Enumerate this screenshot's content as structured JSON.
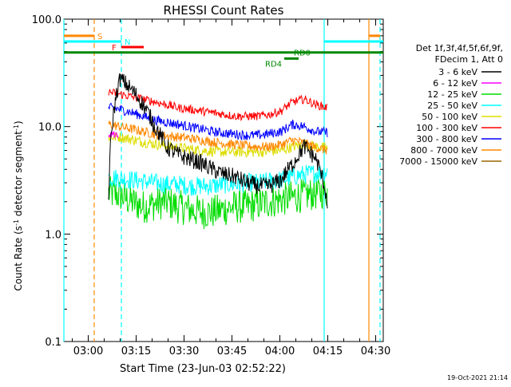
{
  "chart_data": {
    "type": "line",
    "title": "RHESSI Count Rates",
    "xlabel": "Start Time (23-Jun-03 02:52:22)",
    "ylabel_parts": [
      "Count Rate (s",
      "-1",
      " detector segment",
      "-1",
      ")"
    ],
    "y_scale": "log",
    "ylim": [
      0.1,
      100
    ],
    "xlim_minutes_from_start": [
      0,
      100
    ],
    "y_ticks": [
      {
        "value": 0.1,
        "label": "0.1"
      },
      {
        "value": 1,
        "label": "1.0"
      },
      {
        "value": 10,
        "label": "10.0"
      },
      {
        "value": 100,
        "label": "100.0"
      }
    ],
    "x_ticks": [
      {
        "minutes": 7.63,
        "label": "03:00"
      },
      {
        "minutes": 22.63,
        "label": "03:15"
      },
      {
        "minutes": 37.63,
        "label": "03:30"
      },
      {
        "minutes": 52.63,
        "label": "03:45"
      },
      {
        "minutes": 67.63,
        "label": "04:00"
      },
      {
        "minutes": 82.63,
        "label": "04:15"
      },
      {
        "minutes": 97.63,
        "label": "04:30"
      }
    ],
    "legend_header": [
      "Det 1f,3f,4f,5f,6f,9f,",
      "FDecim 1, Att 0"
    ],
    "legend_placement": "right",
    "series": [
      {
        "name": "3 - 6 keV",
        "color": "#000000",
        "x_start": 14,
        "values": [
          2.0,
          28.0,
          22.0,
          16.0,
          10.0,
          6.5,
          5.5,
          5.0,
          4.6,
          4.0,
          3.6,
          3.4,
          3.0,
          2.8,
          2.8,
          3.2,
          4.5,
          6.5,
          5.0,
          2.0
        ]
      },
      {
        "name": "6 - 12 keV",
        "color": "#ff00ff",
        "x_start": 14,
        "values": [
          8.5,
          8.5,
          8.0
        ]
      },
      {
        "name": "12 - 25 keV",
        "color": "#00dd00",
        "x_start": 14,
        "values": [
          2.4,
          2.3,
          2.0,
          1.8,
          1.9,
          2.0,
          1.8,
          1.7,
          1.6,
          1.6,
          1.7,
          1.8,
          1.8,
          1.9,
          2.0,
          2.1,
          2.2,
          2.3,
          2.4,
          2.5
        ]
      },
      {
        "name": "25 - 50 keV",
        "color": "#00ffff",
        "x_start": 14,
        "values": [
          3.4,
          3.3,
          3.2,
          3.1,
          3.0,
          2.9,
          2.9,
          2.8,
          2.8,
          2.8,
          2.9,
          2.9,
          3.0,
          3.0,
          3.1,
          3.2,
          3.4,
          3.6,
          3.7,
          3.8
        ]
      },
      {
        "name": "50 - 100 keV",
        "color": "#dddd00",
        "x_start": 14,
        "values": [
          8.0,
          8.0,
          7.6,
          7.2,
          6.9,
          6.6,
          6.4,
          6.2,
          6.0,
          5.9,
          5.8,
          5.8,
          5.8,
          5.8,
          5.9,
          6.0,
          6.5,
          6.9,
          6.5,
          6.3
        ]
      },
      {
        "name": "100 - 300 keV",
        "color": "#ff0000",
        "x_start": 14,
        "values": [
          21,
          20,
          19,
          18,
          17,
          16,
          15,
          14.5,
          14,
          13.5,
          13,
          12.5,
          12.5,
          12.5,
          13,
          14,
          17,
          18,
          16,
          15
        ]
      },
      {
        "name": "300 - 800 keV",
        "color": "#0000ff",
        "x_start": 14,
        "values": [
          15,
          14.5,
          13.5,
          12.5,
          11.5,
          11,
          10.5,
          10,
          9.5,
          9.0,
          8.7,
          8.5,
          8.3,
          8.3,
          8.6,
          9.0,
          10.5,
          10.0,
          9.0,
          8.8
        ]
      },
      {
        "name": "800 - 7000 keV",
        "color": "#ff8800",
        "x_start": 14,
        "values": [
          10.5,
          10,
          9.5,
          9.0,
          8.5,
          8.2,
          8.0,
          7.8,
          7.5,
          7.2,
          7.0,
          6.8,
          6.6,
          6.5,
          6.5,
          6.8,
          7.5,
          7.0,
          6.4,
          6.0
        ]
      },
      {
        "name": "7000 - 15000 keV",
        "color": "#996600",
        "x_start": 14,
        "values": []
      }
    ],
    "series_x_end": 82.5,
    "vertical_lines": [
      {
        "minutes": 0,
        "color": "#00ffff",
        "style": "solid"
      },
      {
        "minutes": 9.5,
        "color": "#ff8800",
        "style": "dashed"
      },
      {
        "minutes": 18,
        "color": "#00ffff",
        "style": "dashed"
      },
      {
        "minutes": 81.5,
        "color": "#00ffff",
        "style": "solid"
      },
      {
        "minutes": 95.5,
        "color": "#ff8800",
        "style": "solid"
      },
      {
        "minutes": 99,
        "color": "#00ffff",
        "style": "dashed"
      }
    ],
    "flag_bars": [
      {
        "label": "S",
        "color": "#ff8800",
        "x0": 0,
        "x1": 9.5,
        "y": 70,
        "label_at": 10.5
      },
      {
        "label": "N",
        "color": "#00ffff",
        "x0": 0,
        "x1": 18,
        "y": 62,
        "label_at": 19.0
      },
      {
        "label": "F",
        "color": "#ff0000",
        "x0": 18,
        "x1": 25,
        "y": 55,
        "label_at": 15.0
      },
      {
        "label": "RD0",
        "color": "#008800",
        "x0": 0,
        "x1": 100,
        "y": 49,
        "label_at": 72.0
      },
      {
        "label": "RD4",
        "color": "#008800",
        "x0": 69,
        "x1": 73.5,
        "y": 43,
        "label_at": 63.0
      },
      {
        "label": "",
        "color": "#00ffff",
        "x0": 81.5,
        "x1": 100,
        "y": 62,
        "label_at": null
      },
      {
        "label": "",
        "color": "#ff8800",
        "x0": 95.5,
        "x1": 99,
        "y": 70,
        "label_at": null
      }
    ]
  },
  "footer": {
    "timestamp": "19-Oct-2021 21:14"
  }
}
